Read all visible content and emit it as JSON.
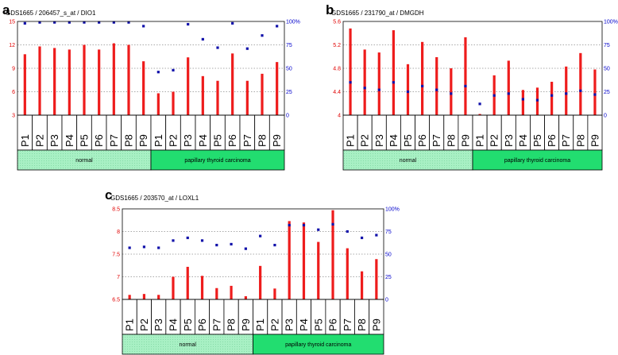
{
  "chart_data": [
    {
      "type": "bar",
      "panel_letter": "a",
      "title": "GDS1665 / 206457_s_at / DIO1",
      "categories": [
        "P1",
        "P2",
        "P3",
        "P4",
        "P5",
        "P6",
        "P7",
        "P8",
        "P9",
        "P1",
        "P2",
        "P3",
        "P4",
        "P5",
        "P6",
        "P7",
        "P8",
        "P9"
      ],
      "groups": [
        {
          "name": "normal",
          "count": 9,
          "color": "#a8f0c4"
        },
        {
          "name": "papillary thyroid carcinoma",
          "count": 9,
          "color": "#22dd70"
        }
      ],
      "series": [
        {
          "name": "expression",
          "axis": "left",
          "color": "#ee1c1c",
          "values": [
            10.8,
            11.8,
            11.6,
            11.4,
            12.0,
            11.4,
            12.2,
            12.0,
            9.9,
            5.8,
            6.0,
            10.4,
            8.0,
            7.4,
            10.9,
            7.4,
            8.3,
            9.8
          ]
        },
        {
          "name": "percentile rank",
          "axis": "right",
          "color": "#1111aa",
          "values": [
            98,
            99,
            99,
            99,
            99,
            99,
            99,
            99,
            95,
            46,
            48,
            97,
            81,
            72,
            98,
            71,
            85,
            95
          ]
        }
      ],
      "ylim": [
        3,
        15
      ],
      "yticks": [
        "3",
        "6",
        "9",
        "12",
        "15"
      ],
      "y2lim": [
        0,
        100
      ],
      "y2ticks": [
        "0",
        "25",
        "50",
        "75",
        "100%"
      ]
    },
    {
      "type": "bar",
      "panel_letter": "b",
      "title": "GDS1665 / 231790_at / DMGDH",
      "categories": [
        "P1",
        "P2",
        "P3",
        "P4",
        "P5",
        "P6",
        "P7",
        "P8",
        "P9",
        "P1",
        "P2",
        "P3",
        "P4",
        "P5",
        "P6",
        "P7",
        "P8",
        "P9"
      ],
      "groups": [
        {
          "name": "normal",
          "count": 9,
          "color": "#a8f0c4"
        },
        {
          "name": "papillary thyroid carcinoma",
          "count": 9,
          "color": "#22dd70"
        }
      ],
      "series": [
        {
          "name": "expression",
          "axis": "left",
          "color": "#ee1c1c",
          "values": [
            5.48,
            5.12,
            5.07,
            5.45,
            4.87,
            5.25,
            4.99,
            4.8,
            5.33,
            4.02,
            4.68,
            4.93,
            4.43,
            4.47,
            4.57,
            4.83,
            5.06,
            4.78
          ]
        },
        {
          "name": "percentile rank",
          "axis": "right",
          "color": "#1111aa",
          "values": [
            35,
            29,
            27,
            35,
            25,
            31,
            27,
            23,
            31,
            12,
            21,
            23,
            17,
            16,
            21,
            23,
            26,
            22
          ]
        }
      ],
      "ylim": [
        4,
        5.6
      ],
      "yticks": [
        "4",
        "4.4",
        "4.8",
        "5.2",
        "5.6"
      ],
      "y2lim": [
        0,
        100
      ],
      "y2ticks": [
        "0",
        "25",
        "50",
        "75",
        "100%"
      ]
    },
    {
      "type": "bar",
      "panel_letter": "c",
      "title": "GDS1665 / 203570_at / LOXL1",
      "categories": [
        "P1",
        "P2",
        "P3",
        "P4",
        "P5",
        "P6",
        "P7",
        "P8",
        "P9",
        "P1",
        "P2",
        "P3",
        "P4",
        "P5",
        "P6",
        "P7",
        "P8",
        "P9"
      ],
      "groups": [
        {
          "name": "normal",
          "count": 9,
          "color": "#a8f0c4"
        },
        {
          "name": "papillary thyroid carcinoma",
          "count": 9,
          "color": "#22dd70"
        }
      ],
      "series": [
        {
          "name": "expression",
          "axis": "left",
          "color": "#ee1c1c",
          "values": [
            6.6,
            6.62,
            6.6,
            7.0,
            7.22,
            7.02,
            6.75,
            6.8,
            6.57,
            7.24,
            6.74,
            8.23,
            8.2,
            7.77,
            8.47,
            7.63,
            7.12,
            7.39
          ]
        },
        {
          "name": "percentile rank",
          "axis": "right",
          "color": "#1111aa",
          "values": [
            57,
            58,
            57,
            65,
            68,
            65,
            60,
            61,
            56,
            70,
            60,
            82,
            82,
            77,
            83,
            75,
            68,
            71
          ]
        }
      ],
      "ylim": [
        6.5,
        8.5
      ],
      "yticks": [
        "6.5",
        "7",
        "7.5",
        "8",
        "8.5"
      ],
      "y2lim": [
        0,
        100
      ],
      "y2ticks": [
        "0",
        "25",
        "50",
        "75",
        "100%"
      ]
    }
  ]
}
